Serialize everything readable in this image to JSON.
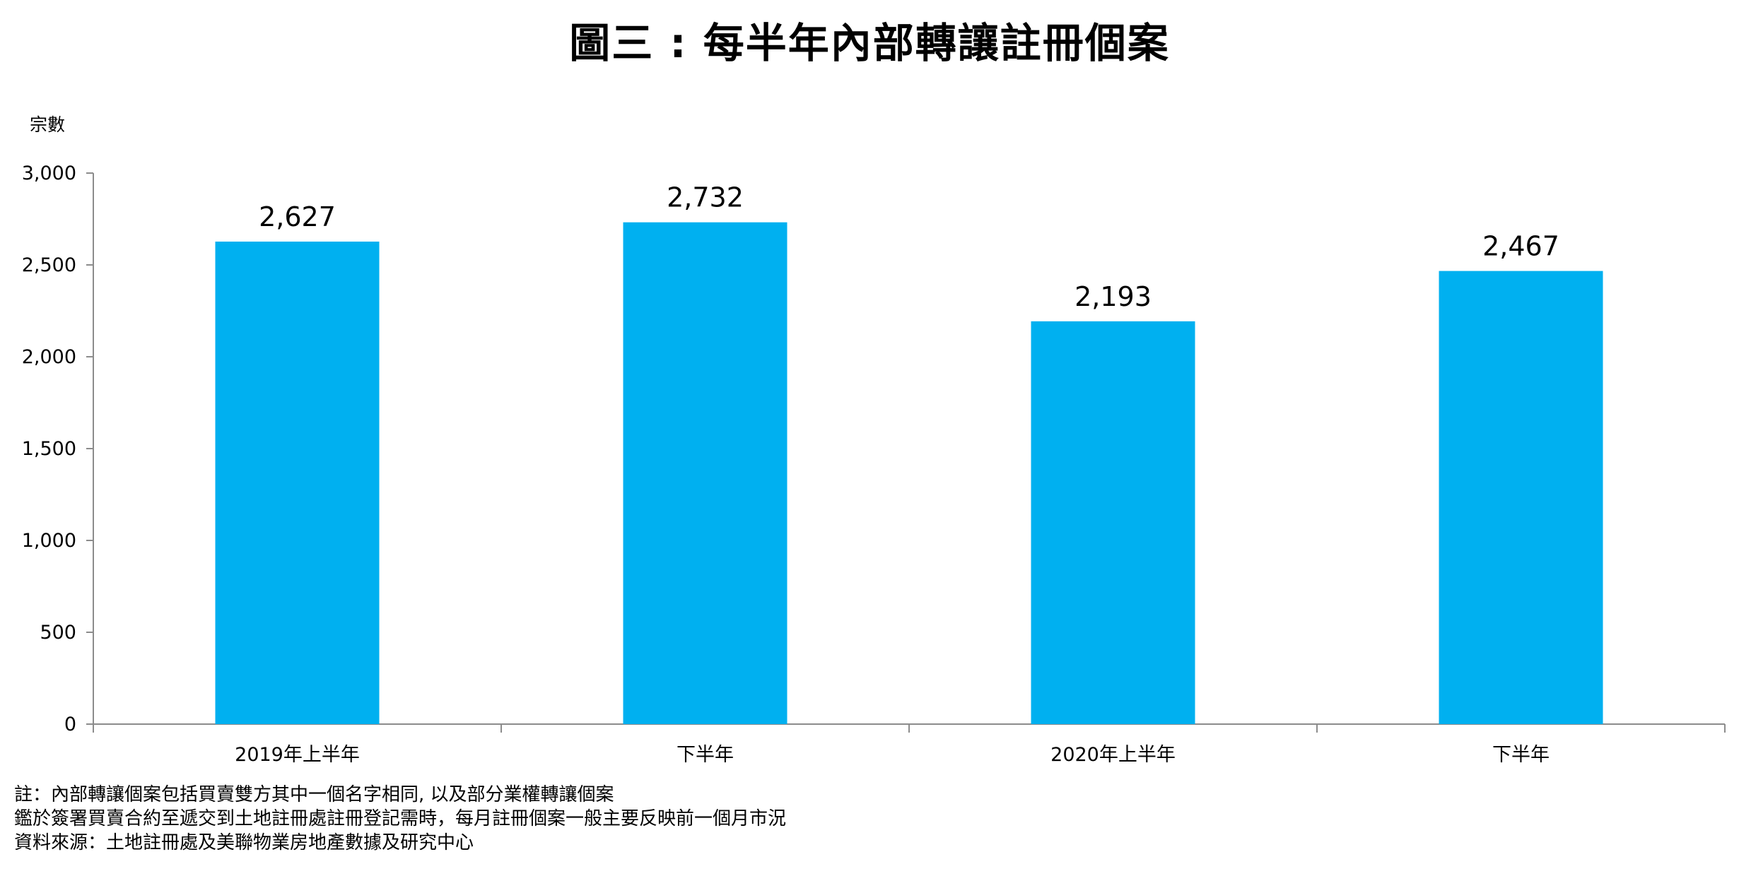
{
  "chart_data": {
    "type": "bar",
    "title": "圖三 : 每半年內部轉讓註冊個案",
    "ylabel": "宗數",
    "xlabel": "",
    "categories": [
      "2019年上半年",
      "下半年",
      "2020年上半年",
      "下半年"
    ],
    "values": [
      2627,
      2732,
      2193,
      2467
    ],
    "value_labels": [
      "2,627",
      "2,732",
      "2,193",
      "2,467"
    ],
    "ylim": [
      0,
      3000
    ],
    "yticks": [
      0,
      500,
      1000,
      1500,
      2000,
      2500,
      3000
    ],
    "ytick_labels": [
      "0",
      "500",
      "1,000",
      "1,500",
      "2,000",
      "2,500",
      "3,000"
    ],
    "bar_color": "#00B0F0",
    "grid": false,
    "legend": "none"
  },
  "footnotes": [
    "註：內部轉讓個案包括買賣雙方其中一個名字相同, 以及部分業權轉讓個案",
    "鑑於簽署買賣合約至遞交到土地註冊處註冊登記需時，每月註冊個案一般主要反映前一個月市況",
    "資料來源：土地註冊處及美聯物業房地產數據及研究中心"
  ]
}
